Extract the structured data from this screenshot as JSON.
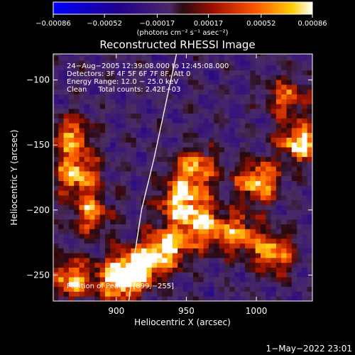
{
  "chart_data": {
    "type": "heatmap",
    "title": "Reconstructed RHESSI Image",
    "xlabel": "Heliocentric X (arcsec)",
    "ylabel": "Heliocentric Y (arcsec)",
    "xlim": [
      855,
      1040
    ],
    "ylim": [
      -270,
      -80
    ],
    "x_ticks": [
      900,
      950,
      1000
    ],
    "y_ticks": [
      -250,
      -200,
      -150,
      -100
    ],
    "x_tick_labels": [
      "900",
      "950",
      "1000"
    ],
    "y_tick_labels": [
      "−250",
      "−200",
      "−150",
      "−100"
    ],
    "colorbar": {
      "range": [
        -0.00086,
        0.00086
      ],
      "tick_values": [
        -0.00086,
        -0.00052,
        -0.00017,
        0.00017,
        0.00052,
        0.00086
      ],
      "tick_labels": [
        "−0.00086",
        "−0.00052",
        "−0.00017",
        "0.00017",
        "0.00052",
        "0.00086"
      ],
      "units_label": "(photons cm⁻² s⁻¹ asec⁻²)"
    },
    "annotations": [
      "24−Aug−2005 12:39:08.000 to 12:45:08.000",
      "Detectors: 3F 4F 5F 6F 7F 8F, Att 0",
      "Energy Range: 12.0 − 25.0 keV",
      "Clean     Total counts: 2.42E+03",
      "Position of Peak = [899,−255]"
    ],
    "peak_position": [
      899,
      -255
    ],
    "limb_curve": [
      [
        943,
        -80
      ],
      [
        935,
        -120
      ],
      [
        927,
        -160
      ],
      [
        918,
        -200
      ],
      [
        913,
        -235
      ],
      [
        909,
        -270
      ]
    ],
    "bright_regions": [
      {
        "x": 865,
        "y": -145,
        "level": 0.7
      },
      {
        "x": 870,
        "y": -175,
        "level": 0.8
      },
      {
        "x": 880,
        "y": -205,
        "level": 0.6
      },
      {
        "x": 865,
        "y": -255,
        "level": 0.75
      },
      {
        "x": 900,
        "y": -255,
        "level": 1.0
      },
      {
        "x": 915,
        "y": -245,
        "level": 0.85
      },
      {
        "x": 935,
        "y": -230,
        "level": 0.8
      },
      {
        "x": 945,
        "y": -195,
        "level": 0.9
      },
      {
        "x": 955,
        "y": -170,
        "level": 0.75
      },
      {
        "x": 960,
        "y": -215,
        "level": 0.7
      },
      {
        "x": 985,
        "y": -220,
        "level": 0.65
      },
      {
        "x": 1000,
        "y": -180,
        "level": 0.8
      },
      {
        "x": 1010,
        "y": -235,
        "level": 0.7
      },
      {
        "x": 1030,
        "y": -150,
        "level": 0.85
      },
      {
        "x": 1020,
        "y": -115,
        "level": 0.55
      }
    ]
  },
  "footer": {
    "timestamp": "1−May−2022 23:01"
  }
}
